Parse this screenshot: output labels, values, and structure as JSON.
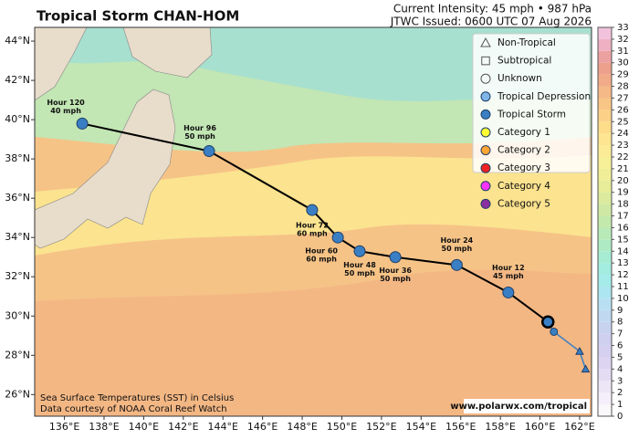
{
  "header": {
    "title": "Tropical Storm CHAN-HOM",
    "intensity": "Current Intensity: 45 mph • 987 hPa",
    "issued": "JTWC Issued: 0600 UTC 07 Aug 2026"
  },
  "map": {
    "xlim": [
      134.5,
      162.6
    ],
    "ylim": [
      24.9,
      44.7
    ],
    "xticks": [
      {
        "value": 136,
        "label": "136°E"
      },
      {
        "value": 138,
        "label": "138°E"
      },
      {
        "value": 140,
        "label": "140°E"
      },
      {
        "value": 142,
        "label": "142°E"
      },
      {
        "value": 144,
        "label": "144°E"
      },
      {
        "value": 146,
        "label": "146°E"
      },
      {
        "value": 148,
        "label": "148°E"
      },
      {
        "value": 150,
        "label": "150°E"
      },
      {
        "value": 152,
        "label": "152°E"
      },
      {
        "value": 154,
        "label": "154°E"
      },
      {
        "value": 156,
        "label": "156°E"
      },
      {
        "value": 158,
        "label": "158°E"
      },
      {
        "value": 160,
        "label": "160°E"
      },
      {
        "value": 162,
        "label": "162°E"
      }
    ],
    "yticks": [
      {
        "value": 26,
        "label": "26°N"
      },
      {
        "value": 28,
        "label": "28°N"
      },
      {
        "value": 30,
        "label": "30°N"
      },
      {
        "value": 32,
        "label": "32°N"
      },
      {
        "value": 34,
        "label": "34°N"
      },
      {
        "value": 36,
        "label": "36°N"
      },
      {
        "value": 38,
        "label": "38°N"
      },
      {
        "value": 40,
        "label": "40°N"
      },
      {
        "value": 42,
        "label": "42°N"
      },
      {
        "value": 44,
        "label": "44°N"
      }
    ],
    "track_color": "#000000",
    "current_position": {
      "lon": 160.4,
      "lat": 29.7,
      "color": "#3a7fc4"
    },
    "past_track": [
      {
        "lon": 160.7,
        "lat": 29.2,
        "symbol": "circle",
        "color": "#3a7fc4"
      },
      {
        "lon": 162.0,
        "lat": 28.2,
        "symbol": "triangle",
        "color": "#3a7fc4"
      },
      {
        "lon": 162.3,
        "lat": 27.3,
        "symbol": "triangle",
        "color": "#3a7fc4"
      }
    ],
    "forecast": [
      {
        "label": "Hour 12",
        "wind": "45 mph",
        "lon": 158.4,
        "lat": 31.2,
        "color": "#3a7fc4"
      },
      {
        "label": "Hour 24",
        "wind": "50 mph",
        "lon": 155.8,
        "lat": 32.6,
        "color": "#3a7fc4"
      },
      {
        "label": "Hour 36",
        "wind": "50 mph",
        "lon": 152.7,
        "lat": 33.0,
        "color": "#3a7fc4"
      },
      {
        "label": "Hour 48",
        "wind": "50 mph",
        "lon": 150.9,
        "lat": 33.3,
        "color": "#3a7fc4"
      },
      {
        "label": "Hour 60",
        "wind": "60 mph",
        "lon": 149.8,
        "lat": 34.0,
        "color": "#3a7fc4"
      },
      {
        "label": "Hour 72",
        "wind": "60 mph",
        "lon": 148.5,
        "lat": 35.4,
        "color": "#3a7fc4"
      },
      {
        "label": "Hour 96",
        "wind": "50 mph",
        "lon": 143.3,
        "lat": 38.4,
        "color": "#3a7fc4"
      },
      {
        "label": "Hour 120",
        "wind": "40 mph",
        "lon": 136.9,
        "lat": 39.8,
        "color": "#3a7fc4"
      }
    ]
  },
  "legend": [
    {
      "name": "Non-Tropical",
      "symbol": "triangle",
      "color": "none"
    },
    {
      "name": "Subtropical",
      "symbol": "square",
      "color": "none"
    },
    {
      "name": "Unknown",
      "symbol": "circle",
      "color": "none"
    },
    {
      "name": "Tropical Depression",
      "symbol": "circle",
      "color": "#7fb6e8"
    },
    {
      "name": "Tropical Storm",
      "symbol": "circle",
      "color": "#3a7fc4"
    },
    {
      "name": "Category 1",
      "symbol": "circle",
      "color": "#ffff33"
    },
    {
      "name": "Category 2",
      "symbol": "circle",
      "color": "#ffa533"
    },
    {
      "name": "Category 3",
      "symbol": "circle",
      "color": "#ee2222"
    },
    {
      "name": "Category 4",
      "symbol": "circle",
      "color": "#ff33ff"
    },
    {
      "name": "Category 5",
      "symbol": "circle",
      "color": "#8b2fa0"
    }
  ],
  "colorbar": {
    "lim": [
      0,
      33
    ],
    "ticks": [
      0,
      1,
      2,
      3,
      4,
      5,
      6,
      7,
      8,
      9,
      10,
      11,
      12,
      13,
      14,
      15,
      16,
      17,
      18,
      19,
      20,
      21,
      22,
      23,
      24,
      25,
      26,
      27,
      28,
      29,
      30,
      31,
      32,
      33
    ],
    "colors": [
      "#fbf8fc",
      "#f4effa",
      "#ece6f7",
      "#e4dcf3",
      "#dcd4f1",
      "#d5d0ef",
      "#cfd0ef",
      "#c8d3f0",
      "#c0d9f1",
      "#b8e0f2",
      "#ace6f0",
      "#a4ebea",
      "#a2ece0",
      "#a6ecd2",
      "#aeebc4",
      "#b8eab8",
      "#c4e9ac",
      "#cfe9a4",
      "#dbea9d",
      "#e6ec98",
      "#f0ee96",
      "#f7ef98",
      "#fbeb96",
      "#fde591",
      "#fddc8a",
      "#fcd187",
      "#f9c586",
      "#f5b887",
      "#f1ab88",
      "#eda08b",
      "#eba1a0",
      "#eeb0c2",
      "#f2c2dc"
    ]
  },
  "footer": {
    "sst_note": "Sea Surface Temperatures (SST) in Celsius",
    "credit": "Data courtesy of NOAA Coral Reef Watch",
    "url": "www.polarwx.com/tropical"
  }
}
